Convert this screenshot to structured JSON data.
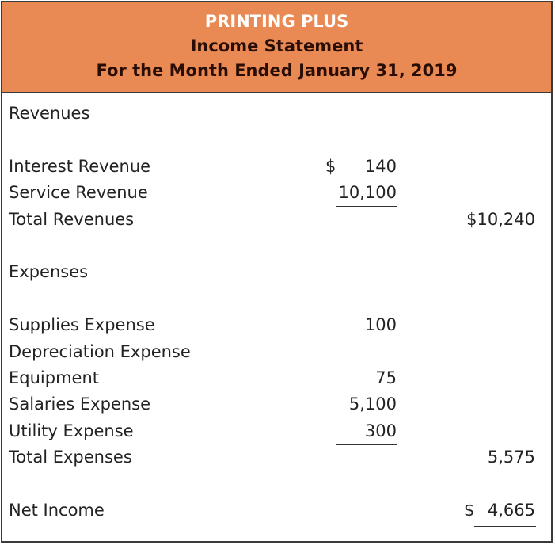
{
  "header": {
    "company": "PRINTING PLUS",
    "statement": "Income Statement",
    "period": "For the Month Ended January 31, 2019",
    "background_color": "#e98a55"
  },
  "revenues": {
    "heading": "Revenues",
    "items": [
      {
        "label": "Interest Revenue",
        "currency": "$",
        "amount": "140"
      },
      {
        "label": "Service Revenue",
        "amount": "10,100"
      }
    ],
    "total_label": "Total Revenues",
    "total": "$10,240"
  },
  "expenses": {
    "heading": "Expenses",
    "items": [
      {
        "label": "Supplies Expense",
        "amount": "100"
      },
      {
        "label": "Depreciation Expense",
        "amount": ""
      },
      {
        "label": "Equipment",
        "amount": "75"
      },
      {
        "label": "Salaries Expense",
        "amount": "5,100"
      },
      {
        "label": "Utility Expense",
        "amount": "300"
      }
    ],
    "total_label": "Total Expenses",
    "total": "5,575"
  },
  "net_income": {
    "label": "Net Income",
    "currency": "$",
    "amount": "4,665"
  }
}
